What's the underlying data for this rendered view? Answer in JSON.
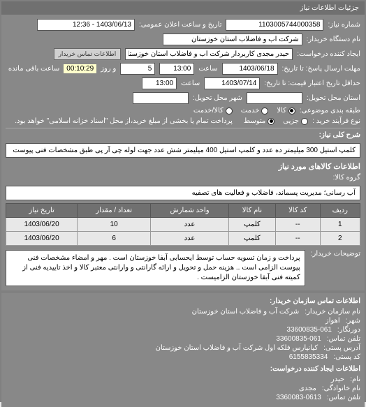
{
  "header": {
    "title": "جزئیات اطلاعات نیاز"
  },
  "request": {
    "number_label": "شماره نیاز:",
    "number": "1103005744000358",
    "announce_label": "تاریخ و ساعت اعلان عمومی:",
    "announce_datetime": "1403/06/13 - 12:36",
    "buyer_org_label": "نام دستگاه خریدار:",
    "buyer_org": "شرکت آب و فاضلاب استان خوزستان",
    "requester_label": "ایجاد کننده درخواست:",
    "requester": "حیدر مجدی کاربردار شرکت آب و فاضلاب استان خوزستان",
    "contact_link": "اطلاعات تماس خریدار",
    "deadline_label": "مهلت ارسال پاسخ: تا تاریخ:",
    "deadline_date": "1403/06/18",
    "time_label": "ساعت",
    "deadline_time": "13:00",
    "days_label": "و روز",
    "days": "5",
    "remaining_label": "ساعت باقی مانده",
    "countdown": "00:10:29",
    "validity_label": "حداقل تاریخ اعتبار قیمت: تا تاریخ:",
    "validity_date": "1403/07/14",
    "validity_time": "13:00",
    "delivery_province_label": "استان محل تحویل:",
    "delivery_city_label": "شهر محل تحویل:",
    "packaging_label": "طبقه بندی موضوعی:",
    "packaging_opt1": "کالا",
    "packaging_opt2": "خدمت",
    "packaging_opt3": "کالا/خدمت",
    "purchase_type_label": "نوع فرآیند خرید :",
    "purchase_opt1": "جزیی",
    "purchase_opt2": "متوسط",
    "purchase_note": "پرداخت تمام یا بخشی از مبلغ خرید،از محل \"اسناد خزانه اسلامی\" خواهد بود."
  },
  "description": {
    "title_label": "شرح کلی نیاز:",
    "text": "کلمپ استیل 300 میلیمتر ده عدد و کلمپ استیل 400 میلیمتر شش عدد جهت لوله چی آر پی طبق مشخصات فنی پیوست"
  },
  "goods": {
    "section_title": "اطلاعات کالاهای مورد نیاز",
    "group_label": "گروه کالا:",
    "group": "آب رسانی؛ مدیریت پسماند، فاضلاب و فعالیت های تصفیه"
  },
  "table": {
    "columns": [
      "ردیف",
      "کد کالا",
      "نام کالا",
      "واحد شمارش",
      "تعداد / مقدار",
      "تاریخ نیاز"
    ],
    "rows": [
      [
        "1",
        "--",
        "کلمپ",
        "عدد",
        "10",
        "1403/06/20"
      ],
      [
        "2",
        "--",
        "کلمپ",
        "عدد",
        "6",
        "1403/06/20"
      ]
    ]
  },
  "buyer_note": {
    "label": "توضیحات خریدار:",
    "text": "پرداخت و زمان تسویه حساب توسط ایحسابی آبفا خوزستان است . مهر و امضاء مشخصات فنی پیوست الزامی است .. هزینه حمل و تحویل و ارائه گارانتی و وارانتی معتبر کالا و اخذ تاییدیه فنی از کمیته فنی آبفا خوزستان الزامیست ."
  },
  "contact": {
    "section_title": "اطلاعات تماس سازمان خریدار:",
    "org_label": "نام سازمان خریدار:",
    "org": "شرکت آب و فاضلاب استان خوزستان",
    "city_label": "شهر:",
    "city": "اهواز",
    "receiver_label": "دورنگار:",
    "receiver": "33600835-061",
    "phone_label": "تلفن تماس:",
    "phone": "33600835-061",
    "postal_address_label": "آدرس پستی:",
    "postal_address": "کیانپارس فلکه اول شرکت آب و فاضلاب استان خوزستان",
    "postal_code_label": "کد پستی:",
    "postal_code": "6155835334",
    "creator_section": "اطلاعات ایجاد کننده درخواست:",
    "name_label": "نام:",
    "name": "حیدر",
    "family_label": "نام خانوادگی:",
    "family": "مجدی",
    "creator_phone_label": "تلفن تماس:",
    "creator_phone": "3360083-0613"
  }
}
